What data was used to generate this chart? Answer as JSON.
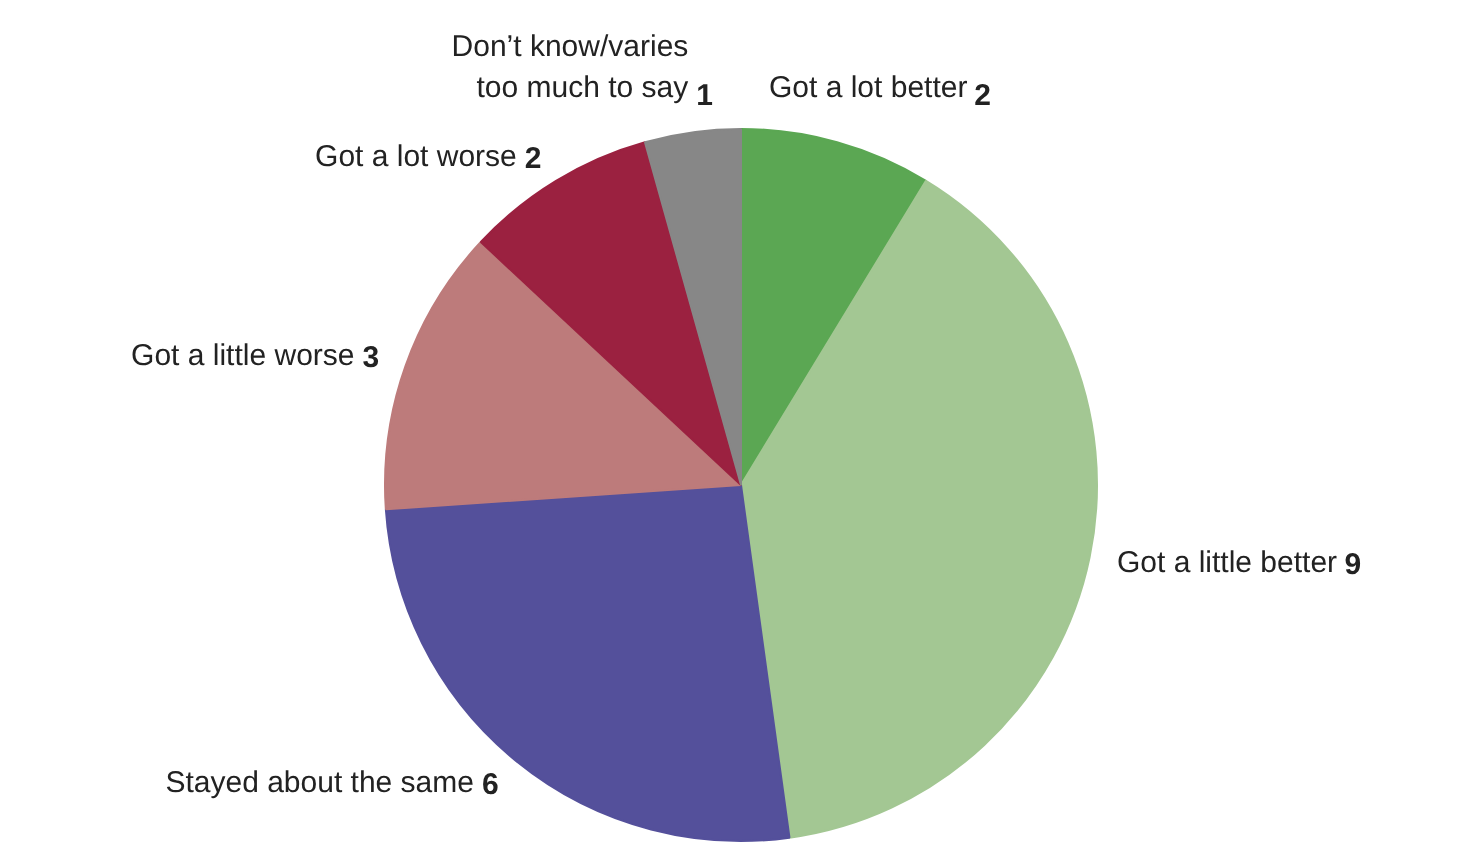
{
  "chart_data": {
    "type": "pie",
    "categories": [
      "Got a lot better",
      "Got a little better",
      "Stayed about the same",
      "Got a little worse",
      "Got a lot worse",
      "Don’t know/varies\ntoo much to say"
    ],
    "values": [
      2,
      9,
      6,
      3,
      2,
      1
    ],
    "colors": [
      "#5ba753",
      "#a3c793",
      "#54509b",
      "#bd7b7b",
      "#9b2140",
      "#878787"
    ],
    "data_labels": true
  }
}
